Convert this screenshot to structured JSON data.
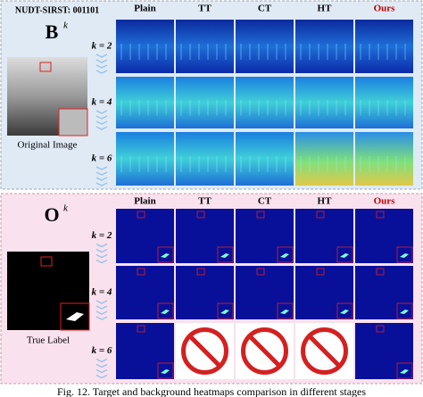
{
  "top_panel": {
    "dataset_label": "NUDT-SIRST: 001101",
    "symbol": "B",
    "superscript": "k",
    "image_caption": "Original Image",
    "columns": [
      "Plain",
      "TT",
      "CT",
      "HT",
      "Ours"
    ],
    "rows": [
      "k = 2",
      "k = 4",
      "k = 6"
    ]
  },
  "bottom_panel": {
    "symbol": "O",
    "superscript": "k",
    "image_caption": "True Label",
    "columns": [
      "Plain",
      "TT",
      "CT",
      "HT",
      "Ours"
    ],
    "rows": [
      "k = 2",
      "k = 4",
      "k = 6"
    ]
  },
  "caption": "Fig. 12. Target and background heatmaps comparison in different stages"
}
